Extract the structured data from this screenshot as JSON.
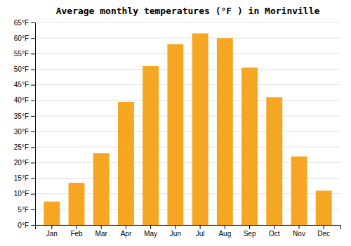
{
  "chart_data": {
    "type": "bar",
    "title": "Average monthly temperatures (°F ) in Morinville",
    "categories": [
      "Jan",
      "Feb",
      "Mar",
      "Apr",
      "May",
      "Jun",
      "Jul",
      "Aug",
      "Sep",
      "Oct",
      "Nov",
      "Dec"
    ],
    "values": [
      7.5,
      13.5,
      23.0,
      39.5,
      51.0,
      58.0,
      61.5,
      60.0,
      50.5,
      41.0,
      22.0,
      11.0
    ],
    "color": "#F5A623",
    "ylim": [
      0,
      65
    ],
    "yticks": [
      {
        "value": 0,
        "label": "0°F"
      },
      {
        "value": 5,
        "label": "5°F"
      },
      {
        "value": 10,
        "label": "10°F"
      },
      {
        "value": 15,
        "label": "15°F"
      },
      {
        "value": 20,
        "label": "20°F"
      },
      {
        "value": 25,
        "label": "25°F"
      },
      {
        "value": 30,
        "label": "30°F"
      },
      {
        "value": 35,
        "label": "35°F"
      },
      {
        "value": 40,
        "label": "40°F"
      },
      {
        "value": 45,
        "label": "45°F"
      },
      {
        "value": 50,
        "label": "50°F"
      },
      {
        "value": 55,
        "label": "55°F"
      },
      {
        "value": 60,
        "label": "60°F"
      },
      {
        "value": 65,
        "label": "65°F"
      }
    ],
    "grid": true
  }
}
